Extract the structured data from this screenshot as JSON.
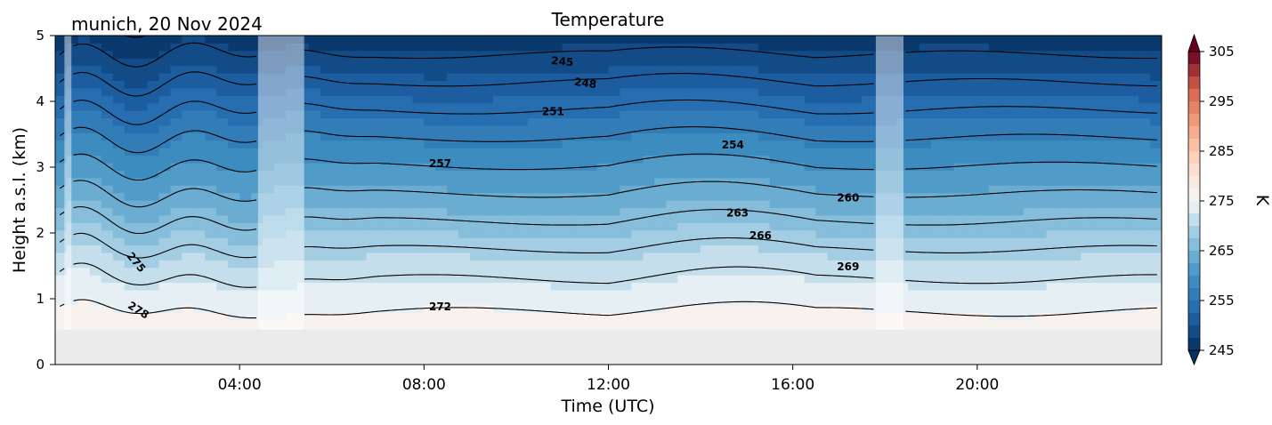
{
  "chart_data": {
    "type": "contour",
    "title": "Temperature",
    "location_date": "munich, 20 Nov 2024",
    "xlabel": "Time (UTC)",
    "ylabel": "Height a.s.l. (km)",
    "xlim_hours": [
      0,
      24
    ],
    "ylim_km": [
      0,
      5
    ],
    "x_ticks": [
      {
        "hour": 4,
        "label": "04:00"
      },
      {
        "hour": 8,
        "label": "08:00"
      },
      {
        "hour": 12,
        "label": "12:00"
      },
      {
        "hour": 16,
        "label": "16:00"
      },
      {
        "hour": 20,
        "label": "20:00"
      }
    ],
    "y_ticks": [
      {
        "km": 0,
        "label": "0"
      },
      {
        "km": 1,
        "label": "1"
      },
      {
        "km": 2,
        "label": "2"
      },
      {
        "km": 3,
        "label": "3"
      },
      {
        "km": 4,
        "label": "4"
      },
      {
        "km": 5,
        "label": "5"
      }
    ],
    "colorbar": {
      "label": "K",
      "vmin": 245,
      "vmax": 305,
      "step": 2.5,
      "extend": "both",
      "colormap": "RdBu_r",
      "ticks": [
        {
          "value": 245,
          "label": "245"
        },
        {
          "value": 255,
          "label": "255"
        },
        {
          "value": 265,
          "label": "265"
        },
        {
          "value": 275,
          "label": "275"
        },
        {
          "value": 285,
          "label": "285"
        },
        {
          "value": 295,
          "label": "295"
        },
        {
          "value": 305,
          "label": "305"
        }
      ]
    },
    "ground_level_km": 0.53,
    "contour_levels_K": [
      245,
      248,
      251,
      254,
      257,
      260,
      263,
      266,
      269,
      272,
      275,
      278
    ],
    "contour_labels": [
      {
        "text": "245",
        "hour": 11.0,
        "km": 4.6,
        "rotation": 5
      },
      {
        "text": "248",
        "hour": 11.5,
        "km": 4.27,
        "rotation": 8
      },
      {
        "text": "251",
        "hour": 10.8,
        "km": 3.84,
        "rotation": 0
      },
      {
        "text": "254",
        "hour": 14.7,
        "km": 3.33,
        "rotation": 0
      },
      {
        "text": "257",
        "hour": 8.35,
        "km": 3.05,
        "rotation": 0
      },
      {
        "text": "260",
        "hour": 17.2,
        "km": 2.53,
        "rotation": 0
      },
      {
        "text": "263",
        "hour": 14.8,
        "km": 2.3,
        "rotation": 0
      },
      {
        "text": "266",
        "hour": 15.3,
        "km": 1.95,
        "rotation": 0
      },
      {
        "text": "269",
        "hour": 17.2,
        "km": 1.48,
        "rotation": 0
      },
      {
        "text": "272",
        "hour": 8.35,
        "km": 0.87,
        "rotation": 0
      },
      {
        "text": "275",
        "hour": 1.75,
        "km": 1.55,
        "rotation": 50
      },
      {
        "text": "278",
        "hour": 1.8,
        "km": 0.82,
        "rotation": 32
      }
    ],
    "missing_data_periods_hours": [
      [
        0.2,
        0.35
      ],
      [
        4.4,
        5.4
      ],
      [
        17.8,
        18.4
      ]
    ],
    "colors": {
      "ground": "#ebebeb",
      "missing_overlay": "#ffffff",
      "contour_line": "#000000"
    }
  }
}
